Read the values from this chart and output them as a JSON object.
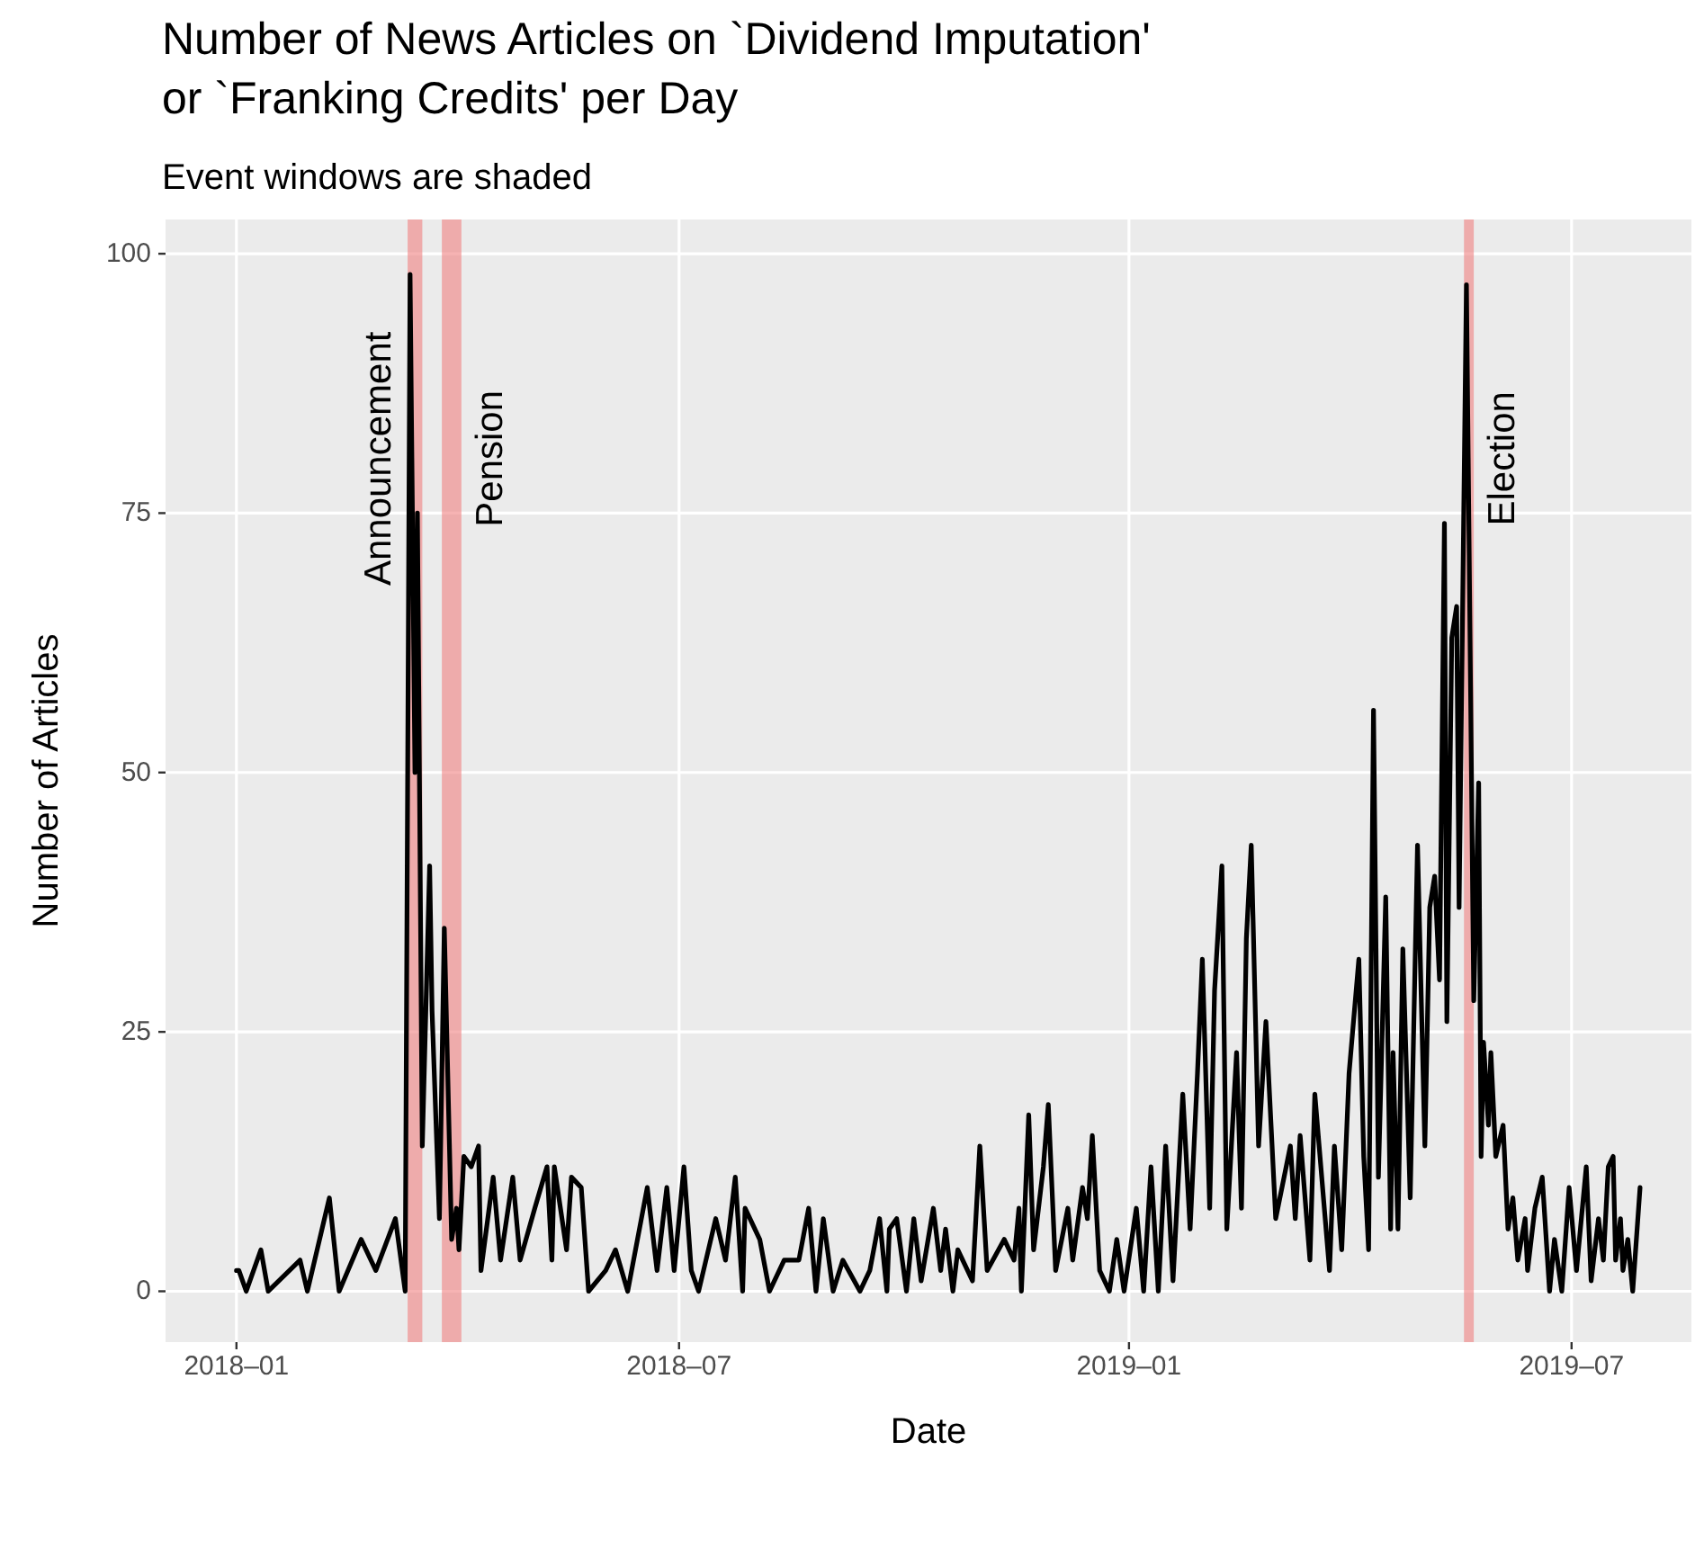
{
  "chart_data": {
    "type": "line",
    "title": "Number of News Articles on `Dividend Imputation'\nor `Franking Credits' per Day",
    "subtitle": "Event windows are shaded",
    "xlabel": "Date",
    "ylabel": "Number of Articles",
    "xlim": [
      "2017-12-03",
      "2019-08-19"
    ],
    "ylim": [
      -4.9,
      103.3
    ],
    "xticks": [
      {
        "value": "2018-01-01",
        "label": "2018–01"
      },
      {
        "value": "2018-07-01",
        "label": "2018–07"
      },
      {
        "value": "2019-01-01",
        "label": "2019–01"
      },
      {
        "value": "2019-07-01",
        "label": "2019–07"
      }
    ],
    "yticks": [
      0,
      25,
      50,
      75,
      100
    ],
    "grid": true,
    "line_style": "solid",
    "marker": "none",
    "bands": [
      {
        "axis": "x",
        "from": "2018-03-12",
        "to": "2018-03-18",
        "label": "Announcement",
        "color": "#f08080"
      },
      {
        "axis": "x",
        "from": "2018-03-26",
        "to": "2018-04-03",
        "label": "Pension",
        "color": "#f08080"
      },
      {
        "axis": "x",
        "from": "2019-05-18",
        "to": "2019-05-22",
        "label": "Election",
        "color": "#f08080"
      }
    ],
    "series": [
      {
        "color": "#000000",
        "x": [
          "2018-01-01",
          "2018-01-02",
          "2018-01-05",
          "2018-01-11",
          "2018-01-14",
          "2018-01-27",
          "2018-01-30",
          "2018-02-08",
          "2018-02-12",
          "2018-02-21",
          "2018-02-27",
          "2018-03-07",
          "2018-03-11",
          "2018-03-13",
          "2018-03-15",
          "2018-03-16",
          "2018-03-18",
          "2018-03-21",
          "2018-03-22",
          "2018-03-25",
          "2018-03-27",
          "2018-03-30",
          "2018-04-01",
          "2018-04-02",
          "2018-04-04",
          "2018-04-07",
          "2018-04-10",
          "2018-04-11",
          "2018-04-16",
          "2018-04-19",
          "2018-04-24",
          "2018-04-27",
          "2018-05-03",
          "2018-05-08",
          "2018-05-10",
          "2018-05-11",
          "2018-05-16",
          "2018-05-18",
          "2018-05-22",
          "2018-05-25",
          "2018-06-01",
          "2018-06-05",
          "2018-06-10",
          "2018-06-18",
          "2018-06-22",
          "2018-06-26",
          "2018-06-29",
          "2018-07-03",
          "2018-07-06",
          "2018-07-09",
          "2018-07-16",
          "2018-07-20",
          "2018-07-24",
          "2018-07-27",
          "2018-07-28",
          "2018-08-03",
          "2018-08-07",
          "2018-08-13",
          "2018-08-19",
          "2018-08-23",
          "2018-08-26",
          "2018-08-29",
          "2018-09-02",
          "2018-09-06",
          "2018-09-13",
          "2018-09-17",
          "2018-09-21",
          "2018-09-24",
          "2018-09-25",
          "2018-09-28",
          "2018-10-02",
          "2018-10-05",
          "2018-10-08",
          "2018-10-13",
          "2018-10-16",
          "2018-10-18",
          "2018-10-21",
          "2018-10-23",
          "2018-10-29",
          "2018-11-01",
          "2018-11-04",
          "2018-11-11",
          "2018-11-15",
          "2018-11-17",
          "2018-11-18",
          "2018-11-21",
          "2018-11-23",
          "2018-11-27",
          "2018-11-29",
          "2018-12-02",
          "2018-12-07",
          "2018-12-09",
          "2018-12-13",
          "2018-12-15",
          "2018-12-17",
          "2018-12-20",
          "2018-12-24",
          "2018-12-27",
          "2018-12-30",
          "2019-01-04",
          "2019-01-07",
          "2019-01-10",
          "2019-01-13",
          "2019-01-16",
          "2019-01-19",
          "2019-01-23",
          "2019-01-26",
          "2019-01-29",
          "2019-01-31",
          "2019-02-03",
          "2019-02-05",
          "2019-02-08",
          "2019-02-10",
          "2019-02-14",
          "2019-02-16",
          "2019-02-18",
          "2019-02-20",
          "2019-02-23",
          "2019-02-26",
          "2019-03-02",
          "2019-03-08",
          "2019-03-10",
          "2019-03-12",
          "2019-03-16",
          "2019-03-18",
          "2019-03-24",
          "2019-03-26",
          "2019-03-29",
          "2019-04-01",
          "2019-04-05",
          "2019-04-07",
          "2019-04-09",
          "2019-04-11",
          "2019-04-13",
          "2019-04-16",
          "2019-04-18",
          "2019-04-19",
          "2019-04-21",
          "2019-04-23",
          "2019-04-26",
          "2019-04-29",
          "2019-05-02",
          "2019-05-04",
          "2019-05-06",
          "2019-05-08",
          "2019-05-10",
          "2019-05-11",
          "2019-05-13",
          "2019-05-15",
          "2019-05-16",
          "2019-05-19",
          "2019-05-22",
          "2019-05-24",
          "2019-05-25",
          "2019-05-26",
          "2019-05-28",
          "2019-05-29",
          "2019-05-31",
          "2019-06-03",
          "2019-06-05",
          "2019-06-07",
          "2019-06-09",
          "2019-06-12",
          "2019-06-13",
          "2019-06-16",
          "2019-06-19",
          "2019-06-22",
          "2019-06-24",
          "2019-06-27",
          "2019-06-30",
          "2019-07-03",
          "2019-07-07",
          "2019-07-09",
          "2019-07-12",
          "2019-07-14",
          "2019-07-16",
          "2019-07-18",
          "2019-07-19",
          "2019-07-21",
          "2019-07-22",
          "2019-07-24",
          "2019-07-26",
          "2019-07-29"
        ],
        "values": [
          2,
          2,
          0,
          4,
          0,
          3,
          0,
          9,
          0,
          5,
          2,
          7,
          0,
          98,
          50,
          75,
          14,
          41,
          27,
          7,
          35,
          5,
          8,
          4,
          13,
          12,
          14,
          2,
          11,
          3,
          11,
          3,
          8,
          12,
          3,
          12,
          4,
          11,
          10,
          0,
          2,
          4,
          0,
          10,
          2,
          10,
          2,
          12,
          2,
          0,
          7,
          3,
          11,
          0,
          8,
          5,
          0,
          3,
          3,
          8,
          0,
          7,
          0,
          3,
          0,
          2,
          7,
          0,
          6,
          7,
          0,
          7,
          1,
          8,
          2,
          6,
          0,
          4,
          1,
          14,
          2,
          5,
          3,
          8,
          0,
          17,
          4,
          12,
          18,
          2,
          8,
          3,
          10,
          7,
          15,
          2,
          0,
          5,
          0,
          8,
          0,
          12,
          0,
          14,
          1,
          19,
          6,
          21,
          32,
          8,
          29,
          41,
          6,
          23,
          8,
          34,
          43,
          14,
          26,
          7,
          14,
          7,
          15,
          3,
          19,
          2,
          14,
          4,
          21,
          32,
          13,
          4,
          56,
          11,
          38,
          6,
          23,
          6,
          33,
          9,
          43,
          14,
          37,
          40,
          30,
          74,
          26,
          63,
          66,
          37,
          97,
          28,
          49,
          13,
          24,
          16,
          23,
          13,
          16,
          6,
          9,
          3,
          7,
          2,
          8,
          11,
          0,
          5,
          0,
          10,
          2,
          12,
          1,
          7,
          3,
          12,
          13,
          3,
          7,
          2,
          5,
          0,
          10
        ]
      }
    ]
  }
}
